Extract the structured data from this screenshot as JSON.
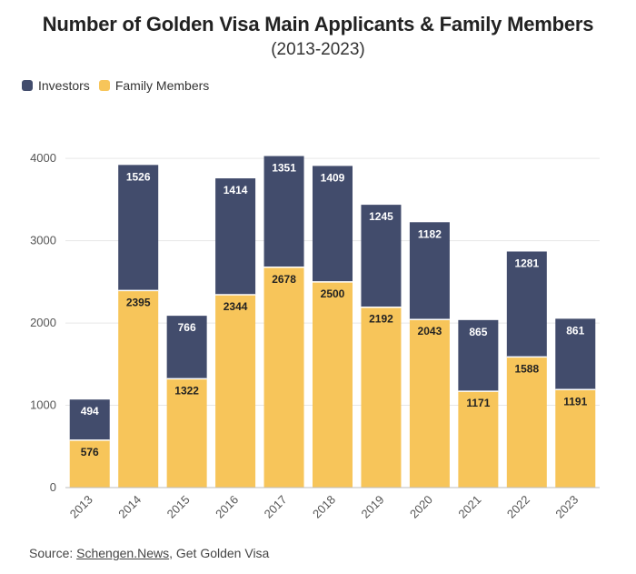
{
  "chart_data": {
    "type": "bar",
    "stacked": true,
    "title": "Number of Golden Visa Main Applicants & Family Members",
    "subtitle": "(2013-2023)",
    "categories": [
      "2013",
      "2014",
      "2015",
      "2016",
      "2017",
      "2018",
      "2019",
      "2020",
      "2021",
      "2022",
      "2023"
    ],
    "series": [
      {
        "name": "Family Members",
        "color": "#f7c55a",
        "values": [
          576,
          2395,
          1322,
          2344,
          2678,
          2500,
          2192,
          2043,
          1171,
          1588,
          1191
        ]
      },
      {
        "name": "Investors",
        "color": "#424c6c",
        "values": [
          494,
          1526,
          766,
          1414,
          1351,
          1409,
          1245,
          1182,
          865,
          1281,
          861
        ]
      }
    ],
    "ylim": [
      0,
      4400
    ],
    "yticks": [
      0,
      1000,
      2000,
      3000,
      4000
    ],
    "grid": true,
    "legend_position": "top-left"
  },
  "legend": {
    "investors": "Investors",
    "family": "Family Members"
  },
  "source": {
    "prefix": "Source: ",
    "link": "Schengen.News",
    "suffix": ", Get Golden Visa"
  }
}
